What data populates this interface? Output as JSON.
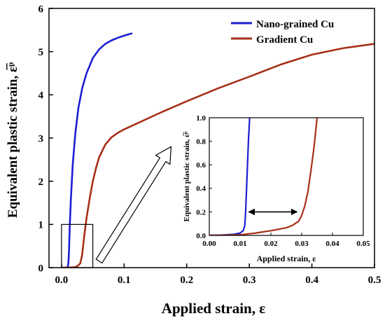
{
  "colors": {
    "nano": "#1e1ed2",
    "gradient": "#a83018",
    "axis": "#000000"
  },
  "chart_data": [
    {
      "type": "line",
      "role": "main",
      "xlabel": "Applied strain, ε",
      "ylabel": "Equivalent plastic strain, ε̅ᵖ",
      "xlim": [
        -0.02,
        0.5
      ],
      "ylim": [
        0,
        6
      ],
      "xticks": [
        0.0,
        0.1,
        0.2,
        0.3,
        0.4,
        0.5
      ],
      "xtick_labels": [
        "0.0",
        "0.1",
        "0.2",
        "0.3",
        "0.4",
        "0.5"
      ],
      "yticks": [
        0,
        1,
        2,
        3,
        4,
        5,
        6
      ],
      "ytick_labels": [
        "0",
        "1",
        "2",
        "3",
        "4",
        "5",
        "6"
      ],
      "grid": false,
      "legend_position": "top-right",
      "series": [
        {
          "name": "Nano-grained Cu",
          "color": "#1e1ed2",
          "x": [
            0.0,
            0.008,
            0.01,
            0.011,
            0.012,
            0.013,
            0.015,
            0.018,
            0.022,
            0.027,
            0.033,
            0.04,
            0.05,
            0.06,
            0.07,
            0.08,
            0.09,
            0.1,
            0.112
          ],
          "y": [
            0.0,
            0.0,
            0.02,
            0.1,
            0.4,
            0.9,
            1.6,
            2.4,
            3.1,
            3.7,
            4.15,
            4.5,
            4.85,
            5.05,
            5.18,
            5.26,
            5.32,
            5.37,
            5.42
          ]
        },
        {
          "name": "Gradient Cu",
          "color": "#a83018",
          "x": [
            0.0,
            0.01,
            0.02,
            0.025,
            0.03,
            0.033,
            0.036,
            0.04,
            0.045,
            0.05,
            0.055,
            0.06,
            0.07,
            0.08,
            0.09,
            0.1,
            0.13,
            0.16,
            0.2,
            0.25,
            0.3,
            0.35,
            0.4,
            0.45,
            0.5
          ],
          "y": [
            0.0,
            0.0,
            0.01,
            0.03,
            0.1,
            0.3,
            0.7,
            1.15,
            1.6,
            2.0,
            2.3,
            2.55,
            2.85,
            3.02,
            3.12,
            3.2,
            3.4,
            3.6,
            3.85,
            4.15,
            4.42,
            4.7,
            4.93,
            5.08,
            5.18
          ]
        }
      ],
      "annotations": [
        {
          "type": "rectangle",
          "x": [
            0.0,
            0.05
          ],
          "y": [
            0.0,
            1.0
          ]
        },
        {
          "type": "arrow",
          "from": [
            0.06,
            0.15
          ],
          "to": [
            0.175,
            2.8
          ]
        }
      ]
    },
    {
      "type": "line",
      "role": "inset",
      "xlabel": "Applied strain, ε",
      "ylabel": "Equivalent plastic strain, ε̅ᵖ",
      "xlim": [
        0.0,
        0.05
      ],
      "ylim": [
        0.0,
        1.0
      ],
      "xticks": [
        0.0,
        0.01,
        0.02,
        0.03,
        0.04,
        0.05
      ],
      "xtick_labels": [
        "0.00",
        "0.01",
        "0.02",
        "0.03",
        "0.04",
        "0.05"
      ],
      "yticks": [
        0.0,
        0.2,
        0.4,
        0.6,
        0.8,
        1.0
      ],
      "ytick_labels": [
        "0.0",
        "0.2",
        "0.4",
        "0.6",
        "0.8",
        "1.0"
      ],
      "grid": false,
      "series": [
        {
          "name": "Nano-grained Cu",
          "color": "#1e1ed2",
          "x": [
            0.0,
            0.004,
            0.008,
            0.01,
            0.011,
            0.0115,
            0.0118,
            0.0121,
            0.0124,
            0.0127,
            0.0131
          ],
          "y": [
            0.0,
            0.003,
            0.01,
            0.02,
            0.04,
            0.08,
            0.2,
            0.4,
            0.6,
            0.8,
            1.0
          ]
        },
        {
          "name": "Gradient Cu",
          "color": "#a83018",
          "x": [
            0.0,
            0.005,
            0.01,
            0.015,
            0.02,
            0.025,
            0.027,
            0.029,
            0.03,
            0.031,
            0.032,
            0.033,
            0.034,
            0.035
          ],
          "y": [
            0.0,
            0.002,
            0.005,
            0.02,
            0.04,
            0.065,
            0.085,
            0.12,
            0.17,
            0.25,
            0.37,
            0.55,
            0.75,
            1.0
          ]
        }
      ],
      "annotations": [
        {
          "type": "double-arrow",
          "x": [
            0.0128,
            0.0285
          ],
          "y": 0.2
        }
      ]
    }
  ]
}
